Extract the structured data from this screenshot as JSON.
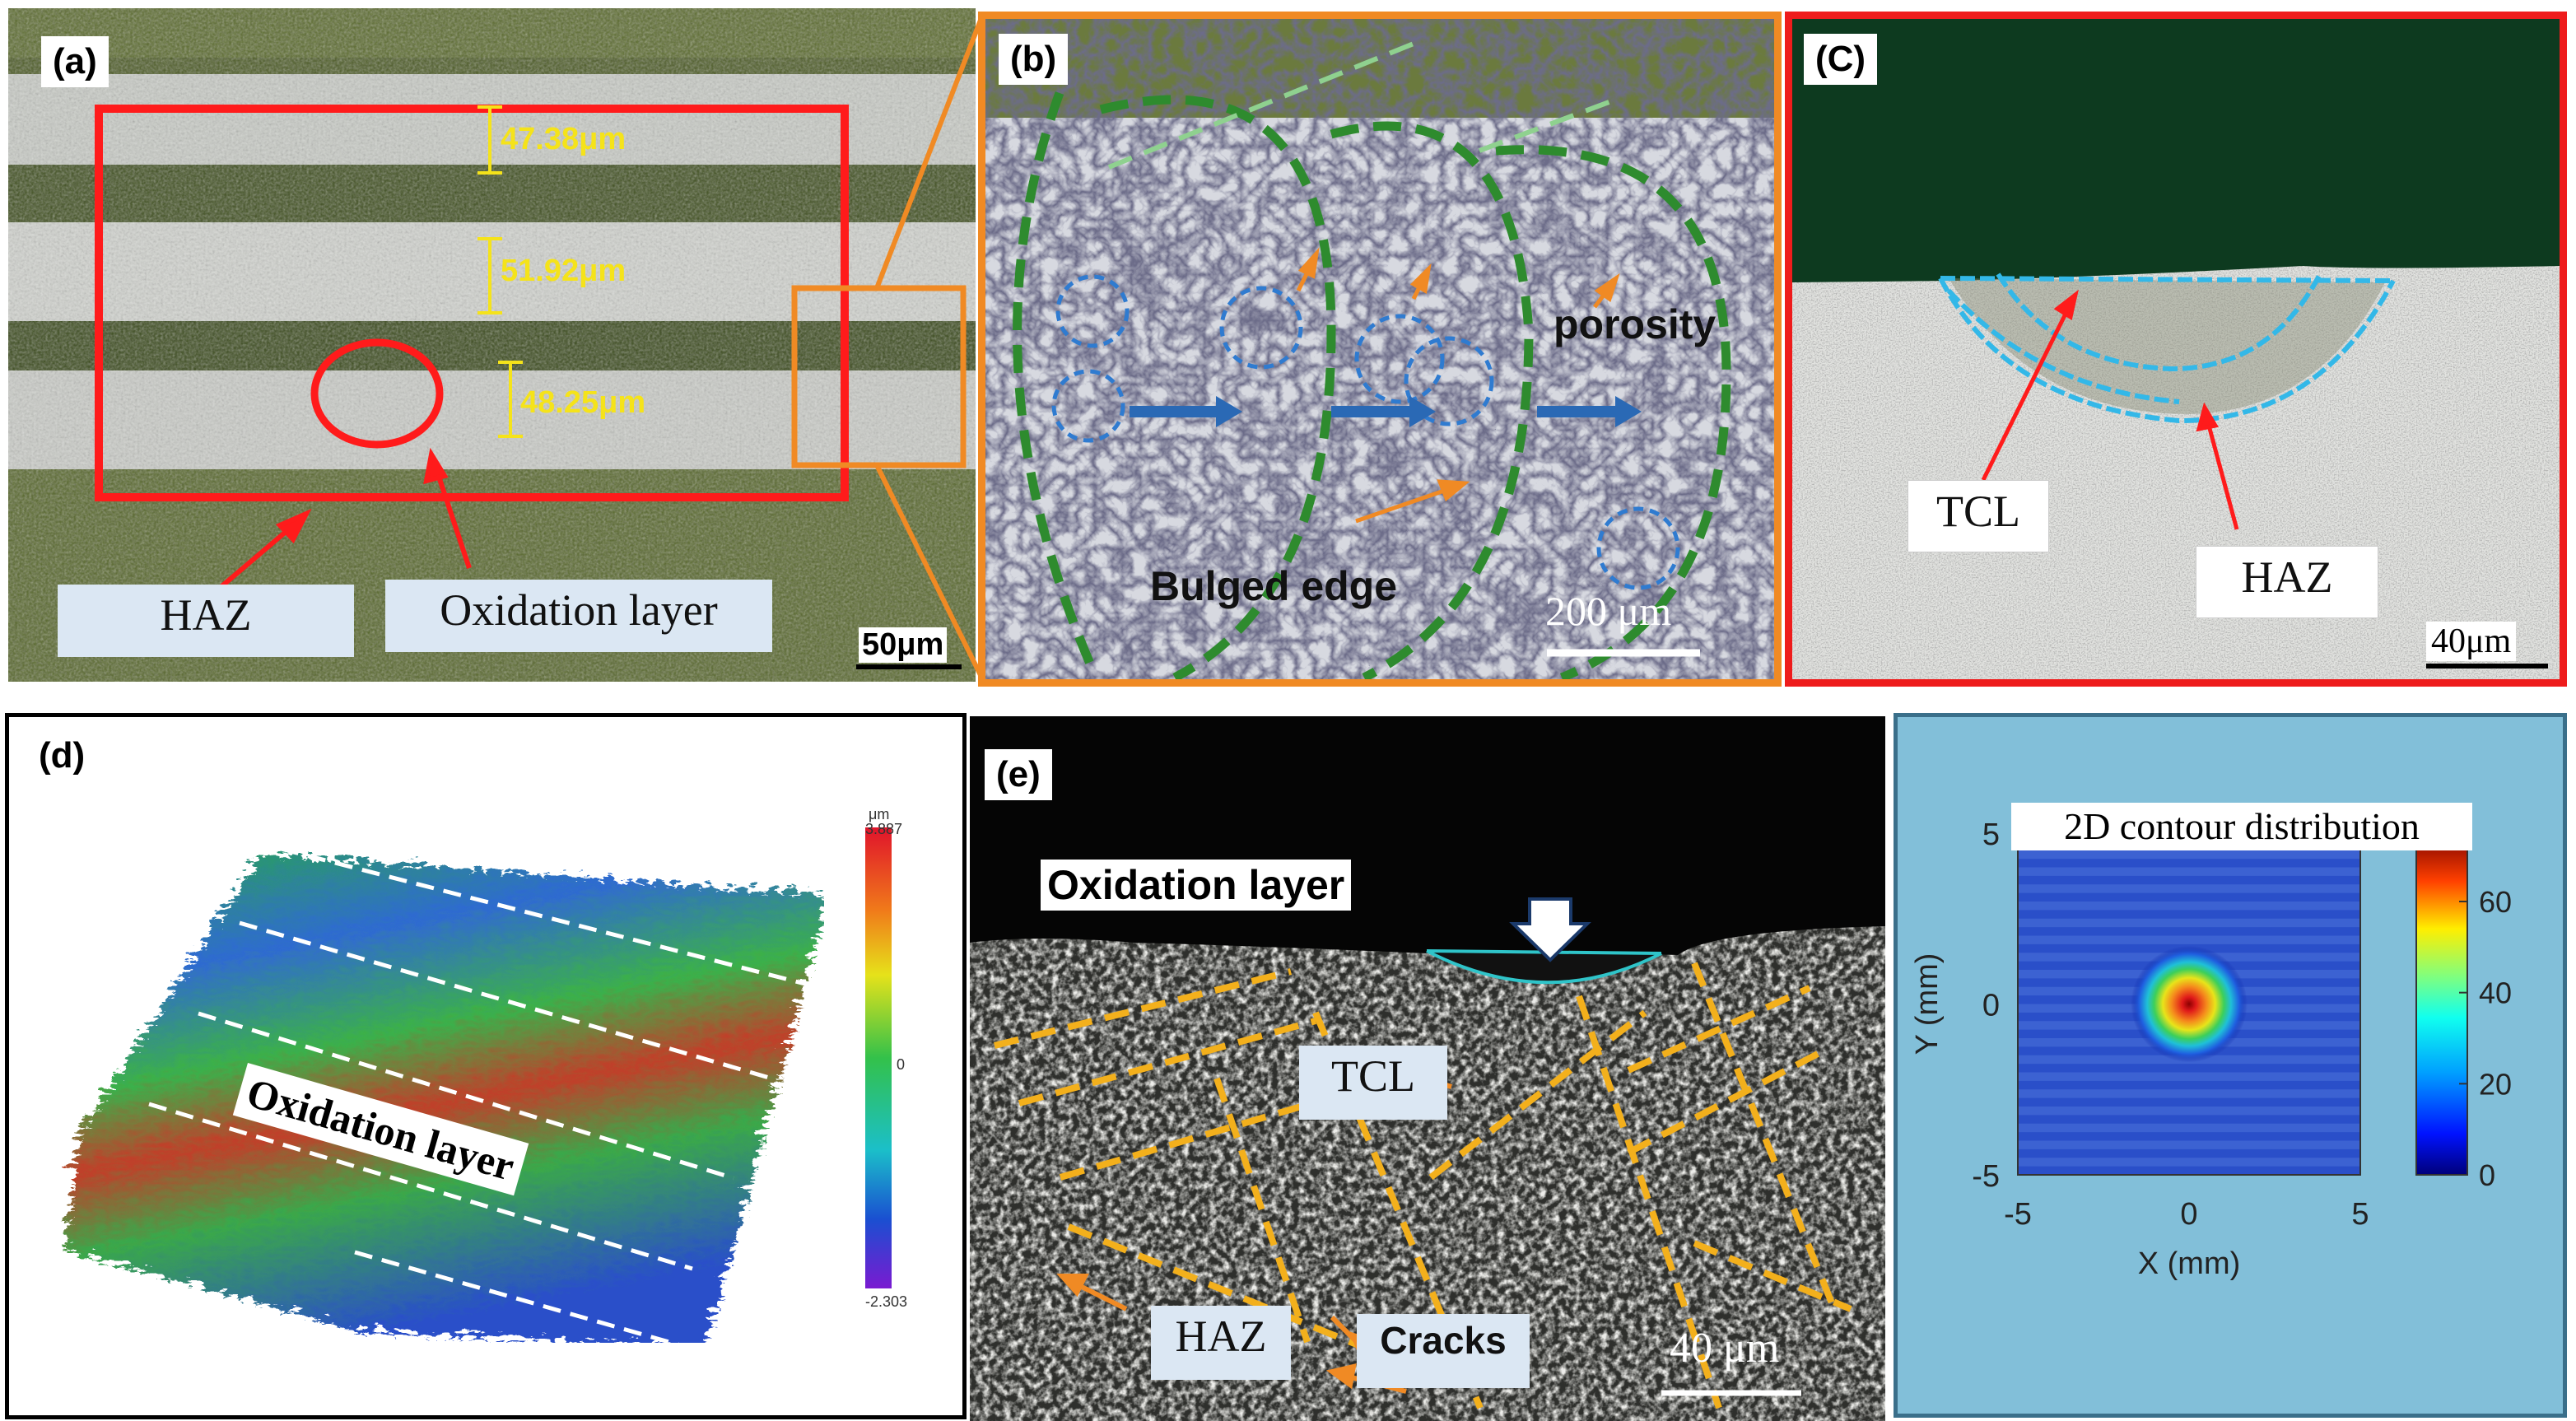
{
  "panel_a": {
    "tag": "(a)",
    "measurements": [
      "47.38μm",
      "51.92μm",
      "48.25μm"
    ],
    "labels": {
      "haz": "HAZ",
      "oxidation": "Oxidation layer"
    },
    "scale_bar": "50μm"
  },
  "panel_b": {
    "tag": "(b)",
    "labels": {
      "porosity": "porosity",
      "bulged_edge": "Bulged edge"
    },
    "scale_bar": "200 μm"
  },
  "panel_c": {
    "tag": "(C)",
    "labels": {
      "tcl": "TCL",
      "haz": "HAZ"
    },
    "scale_bar": "40μm"
  },
  "panel_d": {
    "tag": "(d)",
    "label": "Oxidation layer",
    "colorbar": {
      "unit": "μm",
      "max": "3.887",
      "mid": "0",
      "min": "-2.303"
    }
  },
  "panel_e": {
    "tag": "(e)",
    "labels": {
      "oxidation": "Oxidation layer",
      "tcl": "TCL",
      "haz": "HAZ",
      "cracks": "Cracks"
    },
    "scale_bar": "40 μm"
  },
  "chart_data": {
    "type": "heatmap",
    "title": "2D contour distribution",
    "xlabel": "X (mm)",
    "ylabel": "Y (mm)",
    "xlim": [
      -5,
      5
    ],
    "ylim": [
      -5,
      5
    ],
    "x_ticks": [
      "-5",
      "0",
      "5"
    ],
    "y_ticks": [
      "5",
      "0",
      "-5"
    ],
    "colorbar_ticks": [
      "0",
      "20",
      "40",
      "60"
    ],
    "colorbar_range": [
      0,
      75
    ],
    "peak": {
      "x": 0,
      "y": 0
    },
    "colors": {
      "background": "#82bfd9",
      "low": "#0b1fa0",
      "high": "#8b0000"
    }
  }
}
